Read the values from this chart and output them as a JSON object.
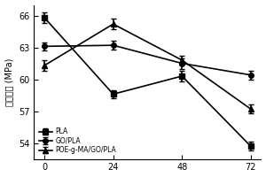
{
  "x": [
    0,
    24,
    48,
    72
  ],
  "PLA": [
    65.8,
    58.6,
    60.3,
    53.7
  ],
  "GO_PLA": [
    63.1,
    63.2,
    61.5,
    60.4
  ],
  "POE_PLA": [
    61.3,
    65.2,
    61.8,
    57.2
  ],
  "PLA_err": [
    0.5,
    0.4,
    0.5,
    0.4
  ],
  "GO_PLA_err": [
    0.4,
    0.4,
    0.5,
    0.4
  ],
  "POE_PLA_err": [
    0.5,
    0.5,
    0.4,
    0.4
  ],
  "ylabel": "拉伸强度 (MPa)",
  "ylim": [
    52.5,
    67.0
  ],
  "yticks": [
    54,
    57,
    60,
    63,
    66
  ],
  "xticks": [
    0,
    24,
    48,
    72
  ],
  "legend_labels": [
    "PLA",
    "GO/PLA",
    "POE-g-MA/GO/PLA"
  ],
  "line_color": "black",
  "marker_PLA": "s",
  "marker_GO": "o",
  "marker_POE": "^",
  "markersize": 4,
  "linewidth": 1.2,
  "capsize": 2
}
